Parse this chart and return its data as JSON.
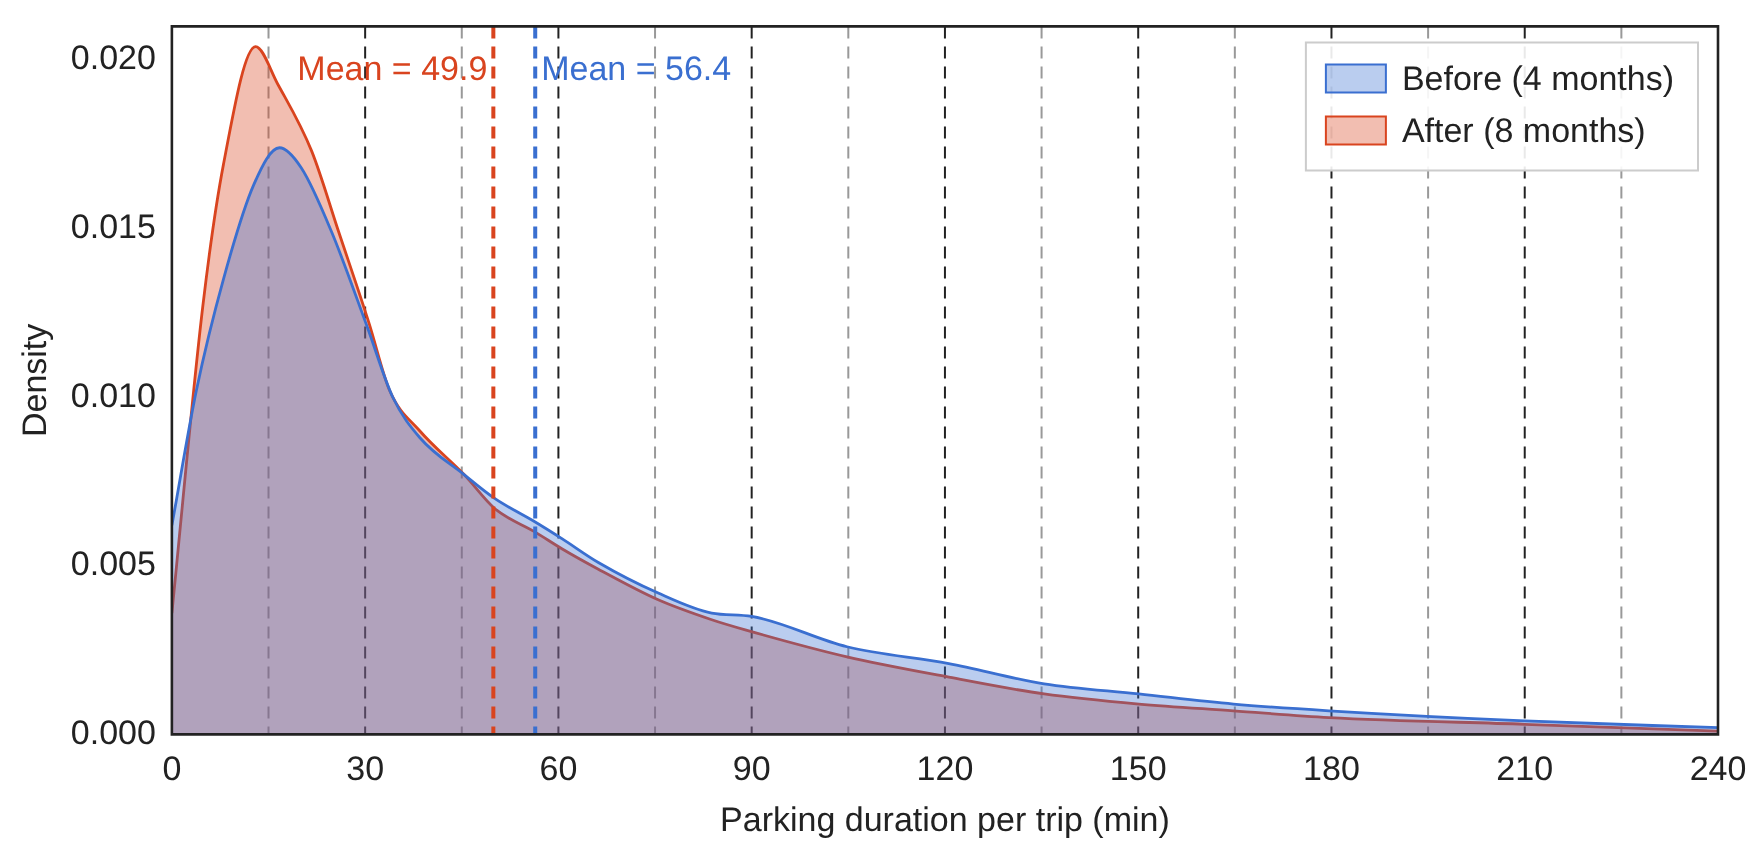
{
  "chart_data": {
    "type": "area",
    "xlabel": "Parking duration per trip (min)",
    "ylabel": "Density",
    "xlim": [
      0,
      240
    ],
    "xticks": [
      0,
      30,
      60,
      90,
      120,
      150,
      180,
      210,
      240
    ],
    "ylim": [
      0,
      0.021
    ],
    "yticks": [
      {
        "value": 0,
        "label": "0.000"
      },
      {
        "value": 0.005,
        "label": "0.005"
      },
      {
        "value": 0.01,
        "label": "0.010"
      },
      {
        "value": 0.015,
        "label": "0.015"
      },
      {
        "value": 0.02,
        "label": "0.020"
      }
    ],
    "grid": false,
    "legend": "top right",
    "series": [
      {
        "name": "Before (4 months)",
        "color": "#3a6fd0",
        "x": [
          0,
          3.8,
          8,
          12.7,
          16.7,
          20.1,
          24.8,
          30.3,
          34.3,
          38.5,
          45.4,
          50.1,
          56.4,
          60.6,
          66.2,
          75.4,
          83.8,
          90,
          104.8,
          120.6,
          135.4,
          150.1,
          164.8,
          179.6,
          210,
          240
        ],
        "values": [
          0.0062,
          0.0102,
          0.0135,
          0.0163,
          0.0174,
          0.0168,
          0.0149,
          0.0121,
          0.01,
          0.0088,
          0.0077,
          0.007,
          0.0063,
          0.0058,
          0.0051,
          0.0042,
          0.0036,
          0.0035,
          0.0026,
          0.0021,
          0.0015,
          0.0012,
          0.0009,
          0.0007,
          0.0004,
          0.0002
        ]
      },
      {
        "name": "After (8 months)",
        "color": "#d9441f",
        "x": [
          0,
          4.8,
          8,
          13,
          16.4,
          21.7,
          25.9,
          30.6,
          33.8,
          38.5,
          45.4,
          50.1,
          56.4,
          60.6,
          66.2,
          75.4,
          83.8,
          89,
          104.8,
          120.6,
          135.4,
          150.1,
          164.8,
          179.6,
          210,
          240
        ],
        "values": [
          0.0036,
          0.0127,
          0.0169,
          0.0204,
          0.0193,
          0.0173,
          0.0149,
          0.0122,
          0.0102,
          0.009,
          0.0077,
          0.0067,
          0.006,
          0.0055,
          0.0049,
          0.004,
          0.0034,
          0.0031,
          0.0023,
          0.0017,
          0.0012,
          0.0009,
          0.0007,
          0.0005,
          0.0003,
          0.0001
        ]
      }
    ],
    "ref_lines": [
      {
        "axis": "x",
        "value": 15,
        "color": "#999999",
        "line_style": "dashed"
      },
      {
        "axis": "x",
        "value": 30,
        "color": "#222222",
        "line_style": "dashed"
      },
      {
        "axis": "x",
        "value": 45,
        "color": "#999999",
        "line_style": "dashed"
      },
      {
        "axis": "x",
        "value": 60,
        "color": "#222222",
        "line_style": "dashed"
      },
      {
        "axis": "x",
        "value": 75,
        "color": "#999999",
        "line_style": "dashed"
      },
      {
        "axis": "x",
        "value": 90,
        "color": "#222222",
        "line_style": "dashed"
      },
      {
        "axis": "x",
        "value": 105,
        "color": "#999999",
        "line_style": "dashed"
      },
      {
        "axis": "x",
        "value": 120,
        "color": "#222222",
        "line_style": "dashed"
      },
      {
        "axis": "x",
        "value": 135,
        "color": "#999999",
        "line_style": "dashed"
      },
      {
        "axis": "x",
        "value": 150,
        "color": "#222222",
        "line_style": "dashed"
      },
      {
        "axis": "x",
        "value": 165,
        "color": "#999999",
        "line_style": "dashed"
      },
      {
        "axis": "x",
        "value": 180,
        "color": "#222222",
        "line_style": "dashed"
      },
      {
        "axis": "x",
        "value": 195,
        "color": "#999999",
        "line_style": "dashed"
      },
      {
        "axis": "x",
        "value": 210,
        "color": "#222222",
        "line_style": "dashed"
      },
      {
        "axis": "x",
        "value": 225,
        "color": "#999999",
        "line_style": "dashed"
      },
      {
        "axis": "x",
        "value": 49.9,
        "label": "Mean = 49.9",
        "color": "#d9441f",
        "line_style": "dashed"
      },
      {
        "axis": "x",
        "value": 56.4,
        "label": "Mean = 56.4",
        "color": "#3a6fd0",
        "line_style": "dashed"
      }
    ]
  }
}
